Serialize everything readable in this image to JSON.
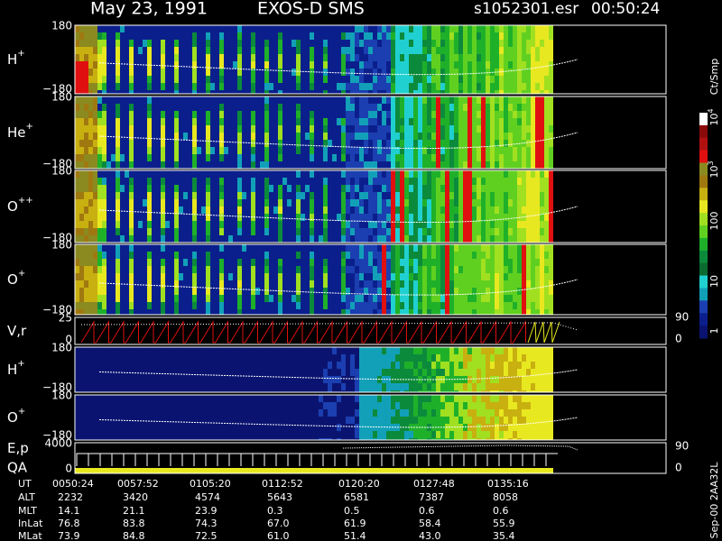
{
  "header": {
    "date": "May 23, 1991",
    "instrument": "EXOS-D SMS",
    "file": "s1052301.esr",
    "time": "00:50:24"
  },
  "panels": [
    {
      "label": "H",
      "sup": "+",
      "top": "180",
      "bottom": "−180"
    },
    {
      "label": "He",
      "sup": "+",
      "top": "180",
      "bottom": "−180"
    },
    {
      "label": "O",
      "sup": "++",
      "top": "180",
      "bottom": "−180"
    },
    {
      "label": "O",
      "sup": "+",
      "top": "180",
      "bottom": "−180"
    },
    {
      "label": "V,r",
      "top": "25",
      "bottom": "0",
      "right_top": "90",
      "right_bottom": "0"
    },
    {
      "label": "H",
      "sup": "+",
      "top": "180",
      "bottom": "−180"
    },
    {
      "label": "O",
      "sup": "+",
      "top": "180",
      "bottom": "−180"
    },
    {
      "label": "E,p",
      "label2": "QA",
      "top": "4000",
      "bottom": "0",
      "right_top": "90",
      "right_bottom": "0"
    }
  ],
  "colorbar": {
    "unit": "Ct/Smp",
    "ticks": [
      {
        "text": "1"
      },
      {
        "text": "10"
      },
      {
        "text": "100"
      },
      {
        "text": "10",
        "sup": "3"
      },
      {
        "text": "10",
        "sup": "4"
      }
    ]
  },
  "table": {
    "rows": [
      [
        "UT",
        "0050:24",
        "0057:52",
        "0105:20",
        "0112:52",
        "0120:20",
        "0127:48",
        "0135:16"
      ],
      [
        "ALT",
        "2232",
        "3420",
        "4574",
        "5643",
        "6581",
        "7387",
        "8058"
      ],
      [
        "MLT",
        "14.1",
        "21.1",
        "23.9",
        "0.3",
        "0.5",
        "0.6",
        "0.6"
      ],
      [
        "InLat",
        "76.8",
        "83.8",
        "74.3",
        "67.0",
        "61.9",
        "58.4",
        "55.9"
      ],
      [
        "MLat",
        "73.9",
        "84.8",
        "72.5",
        "61.0",
        "51.4",
        "43.0",
        "35.4"
      ]
    ]
  },
  "footer": "Sep-00 2AA32L"
}
